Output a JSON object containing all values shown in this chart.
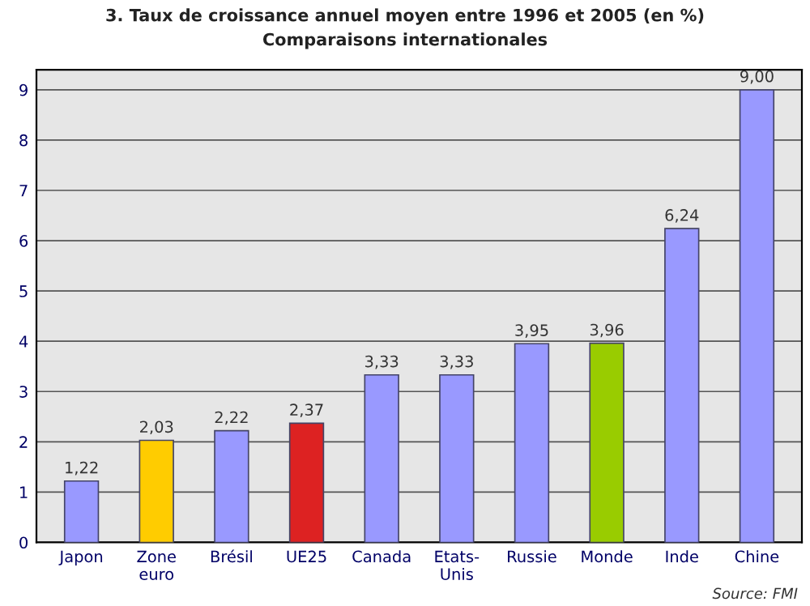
{
  "chart_data": {
    "type": "bar",
    "title": "3. Taux de croissance annuel moyen entre 1996 et 2005 (en %)",
    "subtitle": "Comparaisons internationales",
    "categories": [
      "Japon",
      "Zone\neuro",
      "Brésil",
      "UE25",
      "Canada",
      "Etats-\nUnis",
      "Russie",
      "Monde",
      "Inde",
      "Chine"
    ],
    "values": [
      1.22,
      2.03,
      2.22,
      2.37,
      3.33,
      3.33,
      3.95,
      3.96,
      6.24,
      9.0
    ],
    "value_labels": [
      "1,22",
      "2,03",
      "2,22",
      "2,37",
      "3,33",
      "3,33",
      "3,95",
      "3,96",
      "6,24",
      "9,00"
    ],
    "colors": [
      "#9999ff",
      "#ffcc00",
      "#9999ff",
      "#dd2222",
      "#9999ff",
      "#9999ff",
      "#9999ff",
      "#99cc00",
      "#9999ff",
      "#9999ff"
    ],
    "ylim": [
      0,
      9.4
    ],
    "yticks": [
      0,
      1,
      2,
      3,
      4,
      5,
      6,
      7,
      8,
      9
    ],
    "grid": "y",
    "annotations": [
      "Source: FMI"
    ]
  }
}
